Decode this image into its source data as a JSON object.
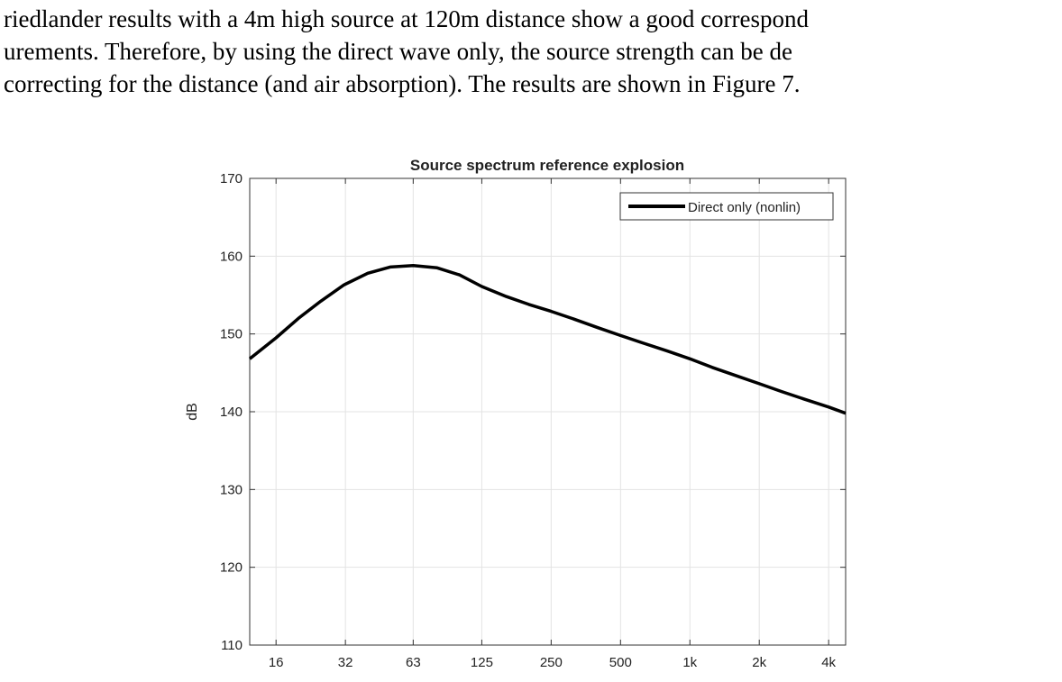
{
  "document": {
    "lines": [
      "riedlander results with a 4m high source at 120m distance show a good correspond",
      "urements. Therefore, by using the direct wave only, the source strength can be de",
      "correcting for the distance (and air absorption). The results are shown in Figure 7."
    ]
  },
  "chart_data": {
    "type": "line",
    "title": "Source spectrum reference explosion",
    "xlabel": "",
    "ylabel": "dB",
    "xscale": "log2",
    "xlim": [
      12.3,
      4740
    ],
    "ylim": [
      110,
      170
    ],
    "xticks": [
      16,
      32,
      63,
      125,
      250,
      500,
      1000,
      2000,
      4000
    ],
    "xtick_labels": [
      "16",
      "32",
      "63",
      "125",
      "250",
      "500",
      "1k",
      "2k",
      "4k"
    ],
    "yticks": [
      110,
      120,
      130,
      140,
      150,
      160,
      170
    ],
    "ytick_labels": [
      "110",
      "120",
      "130",
      "140",
      "150",
      "160",
      "170"
    ],
    "grid": true,
    "legend_position": "top-right",
    "series": [
      {
        "name": "Direct only (nonlin)",
        "color": "#000000",
        "x": [
          12.3,
          16,
          20,
          25,
          31.5,
          40,
          50,
          63,
          80,
          100,
          125,
          160,
          200,
          250,
          315,
          400,
          500,
          630,
          800,
          1000,
          1250,
          1600,
          2000,
          2500,
          3150,
          4000,
          4740
        ],
        "y": [
          146.8,
          149.5,
          152.0,
          154.2,
          156.3,
          157.8,
          158.6,
          158.8,
          158.5,
          157.6,
          156.1,
          154.8,
          153.8,
          152.9,
          151.9,
          150.8,
          149.8,
          148.8,
          147.8,
          146.8,
          145.7,
          144.6,
          143.6,
          142.6,
          141.6,
          140.6,
          139.8
        ]
      }
    ]
  }
}
